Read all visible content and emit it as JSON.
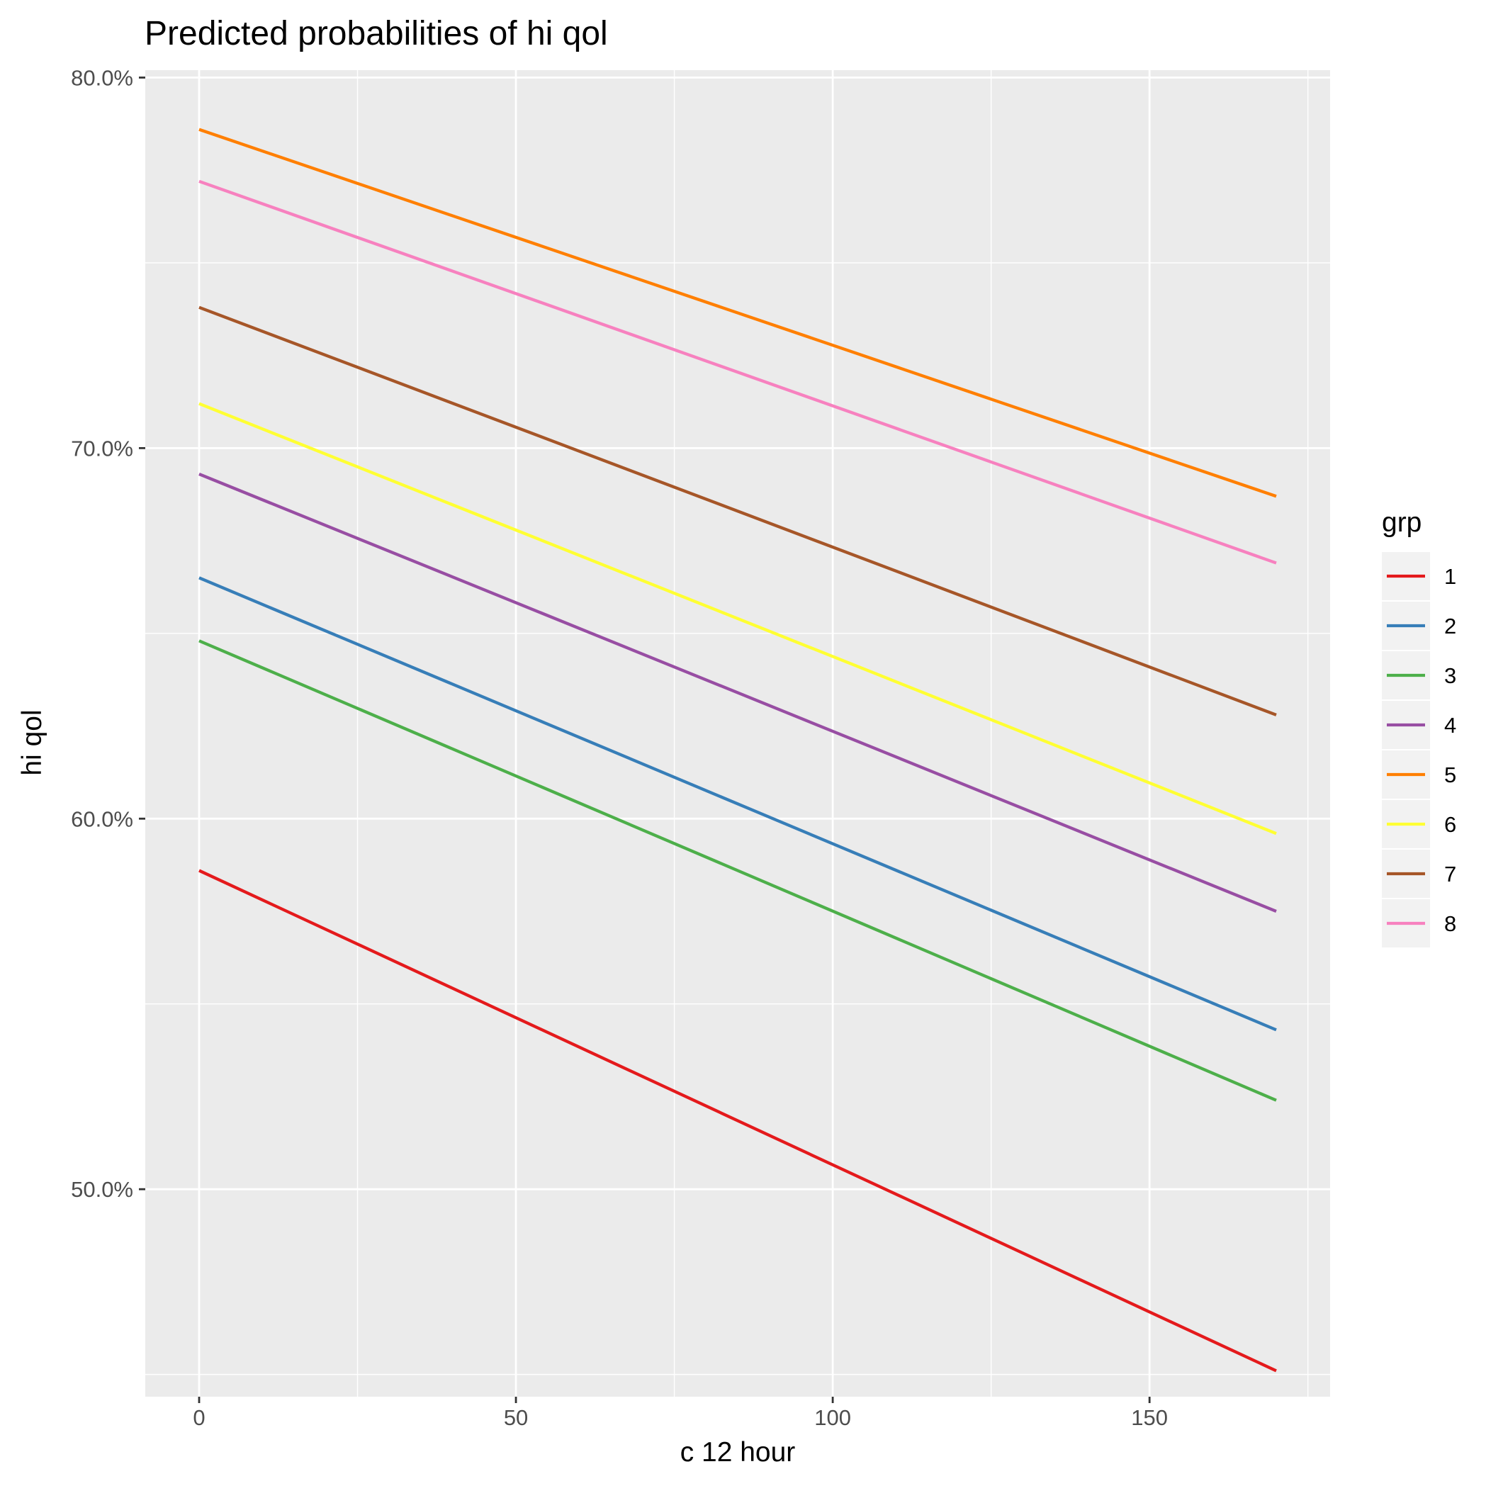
{
  "chart_data": {
    "type": "line",
    "title": "Predicted probabilities of hi qol",
    "xlabel": "c 12 hour",
    "ylabel": "hi qol",
    "xlim": [
      -8.5,
      178.5
    ],
    "ylim": [
      44.4,
      80.2
    ],
    "x_ticks": [
      0,
      50,
      100,
      150
    ],
    "x_tick_labels": [
      "0",
      "50",
      "100",
      "150"
    ],
    "x_minor_ticks": [
      25,
      75,
      125,
      175
    ],
    "y_ticks": [
      50,
      60,
      70,
      80
    ],
    "y_tick_labels": [
      "50.0%",
      "60.0%",
      "70.0%",
      "80.0%"
    ],
    "y_minor_ticks": [
      45,
      55,
      65,
      75
    ],
    "grid": true,
    "legend": {
      "title": "grp",
      "position": "right"
    },
    "series": [
      {
        "name": "1",
        "color": "#E41A1C",
        "x": [
          0,
          170
        ],
        "y": [
          58.6,
          45.1
        ]
      },
      {
        "name": "2",
        "color": "#377EB8",
        "x": [
          0,
          170
        ],
        "y": [
          66.5,
          54.3
        ]
      },
      {
        "name": "3",
        "color": "#4DAF4A",
        "x": [
          0,
          170
        ],
        "y": [
          64.8,
          52.4
        ]
      },
      {
        "name": "4",
        "color": "#984EA3",
        "x": [
          0,
          170
        ],
        "y": [
          69.3,
          57.5
        ]
      },
      {
        "name": "5",
        "color": "#FF7F00",
        "x": [
          0,
          170
        ],
        "y": [
          78.6,
          68.7
        ]
      },
      {
        "name": "6",
        "color": "#FFFF33",
        "x": [
          0,
          170
        ],
        "y": [
          71.2,
          59.6
        ]
      },
      {
        "name": "7",
        "color": "#A65628",
        "x": [
          0,
          170
        ],
        "y": [
          73.8,
          62.8
        ]
      },
      {
        "name": "8",
        "color": "#F781BF",
        "x": [
          0,
          170
        ],
        "y": [
          77.2,
          66.9
        ]
      }
    ]
  }
}
